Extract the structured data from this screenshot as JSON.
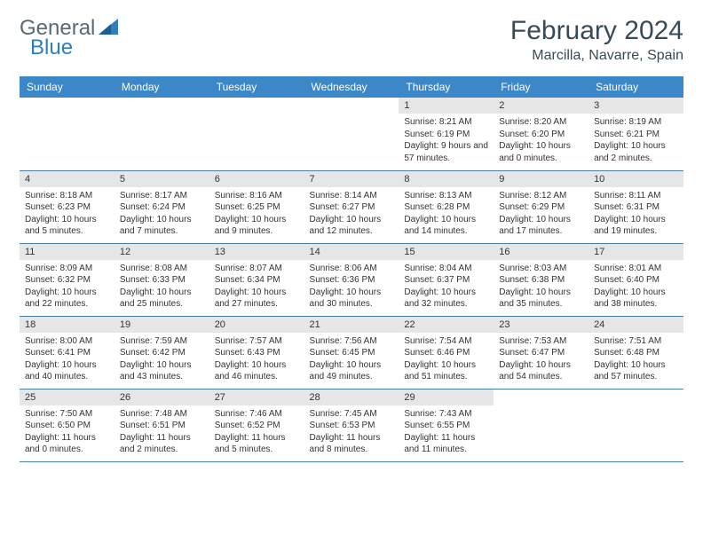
{
  "brand": {
    "part1": "General",
    "part2": "Blue"
  },
  "title": "February 2024",
  "location": "Marcilla, Navarre, Spain",
  "day_headers": [
    "Sunday",
    "Monday",
    "Tuesday",
    "Wednesday",
    "Thursday",
    "Friday",
    "Saturday"
  ],
  "colors": {
    "header_bg": "#3b87c8",
    "header_text": "#ffffff",
    "daynum_bg": "#e6e6e6",
    "cell_border": "#4a7da3",
    "title_color": "#374a55",
    "logo_gray": "#5a6a72",
    "logo_blue": "#2d7fbf",
    "text_color": "#333333",
    "background": "#ffffff"
  },
  "typography": {
    "title_fontsize": 30,
    "location_fontsize": 16,
    "header_fontsize": 12,
    "daynum_fontsize": 11,
    "cell_fontsize": 10
  },
  "weeks": [
    [
      null,
      null,
      null,
      null,
      {
        "num": "1",
        "sunrise": "Sunrise: 8:21 AM",
        "sunset": "Sunset: 6:19 PM",
        "daylight": "Daylight: 9 hours and 57 minutes."
      },
      {
        "num": "2",
        "sunrise": "Sunrise: 8:20 AM",
        "sunset": "Sunset: 6:20 PM",
        "daylight": "Daylight: 10 hours and 0 minutes."
      },
      {
        "num": "3",
        "sunrise": "Sunrise: 8:19 AM",
        "sunset": "Sunset: 6:21 PM",
        "daylight": "Daylight: 10 hours and 2 minutes."
      }
    ],
    [
      {
        "num": "4",
        "sunrise": "Sunrise: 8:18 AM",
        "sunset": "Sunset: 6:23 PM",
        "daylight": "Daylight: 10 hours and 5 minutes."
      },
      {
        "num": "5",
        "sunrise": "Sunrise: 8:17 AM",
        "sunset": "Sunset: 6:24 PM",
        "daylight": "Daylight: 10 hours and 7 minutes."
      },
      {
        "num": "6",
        "sunrise": "Sunrise: 8:16 AM",
        "sunset": "Sunset: 6:25 PM",
        "daylight": "Daylight: 10 hours and 9 minutes."
      },
      {
        "num": "7",
        "sunrise": "Sunrise: 8:14 AM",
        "sunset": "Sunset: 6:27 PM",
        "daylight": "Daylight: 10 hours and 12 minutes."
      },
      {
        "num": "8",
        "sunrise": "Sunrise: 8:13 AM",
        "sunset": "Sunset: 6:28 PM",
        "daylight": "Daylight: 10 hours and 14 minutes."
      },
      {
        "num": "9",
        "sunrise": "Sunrise: 8:12 AM",
        "sunset": "Sunset: 6:29 PM",
        "daylight": "Daylight: 10 hours and 17 minutes."
      },
      {
        "num": "10",
        "sunrise": "Sunrise: 8:11 AM",
        "sunset": "Sunset: 6:31 PM",
        "daylight": "Daylight: 10 hours and 19 minutes."
      }
    ],
    [
      {
        "num": "11",
        "sunrise": "Sunrise: 8:09 AM",
        "sunset": "Sunset: 6:32 PM",
        "daylight": "Daylight: 10 hours and 22 minutes."
      },
      {
        "num": "12",
        "sunrise": "Sunrise: 8:08 AM",
        "sunset": "Sunset: 6:33 PM",
        "daylight": "Daylight: 10 hours and 25 minutes."
      },
      {
        "num": "13",
        "sunrise": "Sunrise: 8:07 AM",
        "sunset": "Sunset: 6:34 PM",
        "daylight": "Daylight: 10 hours and 27 minutes."
      },
      {
        "num": "14",
        "sunrise": "Sunrise: 8:06 AM",
        "sunset": "Sunset: 6:36 PM",
        "daylight": "Daylight: 10 hours and 30 minutes."
      },
      {
        "num": "15",
        "sunrise": "Sunrise: 8:04 AM",
        "sunset": "Sunset: 6:37 PM",
        "daylight": "Daylight: 10 hours and 32 minutes."
      },
      {
        "num": "16",
        "sunrise": "Sunrise: 8:03 AM",
        "sunset": "Sunset: 6:38 PM",
        "daylight": "Daylight: 10 hours and 35 minutes."
      },
      {
        "num": "17",
        "sunrise": "Sunrise: 8:01 AM",
        "sunset": "Sunset: 6:40 PM",
        "daylight": "Daylight: 10 hours and 38 minutes."
      }
    ],
    [
      {
        "num": "18",
        "sunrise": "Sunrise: 8:00 AM",
        "sunset": "Sunset: 6:41 PM",
        "daylight": "Daylight: 10 hours and 40 minutes."
      },
      {
        "num": "19",
        "sunrise": "Sunrise: 7:59 AM",
        "sunset": "Sunset: 6:42 PM",
        "daylight": "Daylight: 10 hours and 43 minutes."
      },
      {
        "num": "20",
        "sunrise": "Sunrise: 7:57 AM",
        "sunset": "Sunset: 6:43 PM",
        "daylight": "Daylight: 10 hours and 46 minutes."
      },
      {
        "num": "21",
        "sunrise": "Sunrise: 7:56 AM",
        "sunset": "Sunset: 6:45 PM",
        "daylight": "Daylight: 10 hours and 49 minutes."
      },
      {
        "num": "22",
        "sunrise": "Sunrise: 7:54 AM",
        "sunset": "Sunset: 6:46 PM",
        "daylight": "Daylight: 10 hours and 51 minutes."
      },
      {
        "num": "23",
        "sunrise": "Sunrise: 7:53 AM",
        "sunset": "Sunset: 6:47 PM",
        "daylight": "Daylight: 10 hours and 54 minutes."
      },
      {
        "num": "24",
        "sunrise": "Sunrise: 7:51 AM",
        "sunset": "Sunset: 6:48 PM",
        "daylight": "Daylight: 10 hours and 57 minutes."
      }
    ],
    [
      {
        "num": "25",
        "sunrise": "Sunrise: 7:50 AM",
        "sunset": "Sunset: 6:50 PM",
        "daylight": "Daylight: 11 hours and 0 minutes."
      },
      {
        "num": "26",
        "sunrise": "Sunrise: 7:48 AM",
        "sunset": "Sunset: 6:51 PM",
        "daylight": "Daylight: 11 hours and 2 minutes."
      },
      {
        "num": "27",
        "sunrise": "Sunrise: 7:46 AM",
        "sunset": "Sunset: 6:52 PM",
        "daylight": "Daylight: 11 hours and 5 minutes."
      },
      {
        "num": "28",
        "sunrise": "Sunrise: 7:45 AM",
        "sunset": "Sunset: 6:53 PM",
        "daylight": "Daylight: 11 hours and 8 minutes."
      },
      {
        "num": "29",
        "sunrise": "Sunrise: 7:43 AM",
        "sunset": "Sunset: 6:55 PM",
        "daylight": "Daylight: 11 hours and 11 minutes."
      },
      null,
      null
    ]
  ]
}
